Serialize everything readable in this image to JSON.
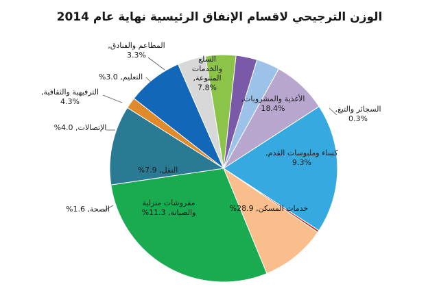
{
  "chart_data": {
    "type": "pie",
    "title": "الوزن الترجيحي لاقسام الإنفاق الرئيسية نهاية عام 2014",
    "slices": [
      {
        "label_lines": [
          "الأغذية والمشروبات,",
          "18.4%"
        ],
        "value": 18.4,
        "color": "#36a9e1"
      },
      {
        "label_lines": [
          "السجائر والتبغ,",
          "0.3%"
        ],
        "value": 0.3,
        "color": "#b5362f"
      },
      {
        "label_lines": [
          "كساء وملبوسات القدم,",
          "9.3%"
        ],
        "value": 9.3,
        "color": "#f9be8c"
      },
      {
        "label_lines": [
          "خدمات المسكن, 28.9%"
        ],
        "value": 28.9,
        "color": "#1aaa50"
      },
      {
        "label_lines": [
          "مفروشات منزلية",
          "والصيانة, 11.3%"
        ],
        "value": 11.3,
        "color": "#2a7a93"
      },
      {
        "label_lines": [
          "الصحة, 1.6%"
        ],
        "value": 1.6,
        "color": "#e08a2c"
      },
      {
        "label_lines": [
          "النقل, 7.9%"
        ],
        "value": 7.9,
        "color": "#1367b8"
      },
      {
        "label_lines": [
          "الإتصالات, 4.0%"
        ],
        "value": 4.0,
        "color": "#d8d8d8"
      },
      {
        "label_lines": [
          "الترفيهية والثقافية,",
          "4.3%"
        ],
        "value": 4.3,
        "color": "#8cc44a"
      },
      {
        "label_lines": [
          "التعليم, 3.0%"
        ],
        "value": 3.0,
        "color": "#7a5aa8"
      },
      {
        "label_lines": [
          "المطاعم والفنادق,",
          "3.3%"
        ],
        "value": 3.3,
        "color": "#9cc2ea"
      },
      {
        "label_lines": [
          "السلع",
          "والخدمات",
          "المتنوعة,",
          "7.8%"
        ],
        "value": 7.8,
        "color": "#b7a6cd"
      }
    ]
  }
}
